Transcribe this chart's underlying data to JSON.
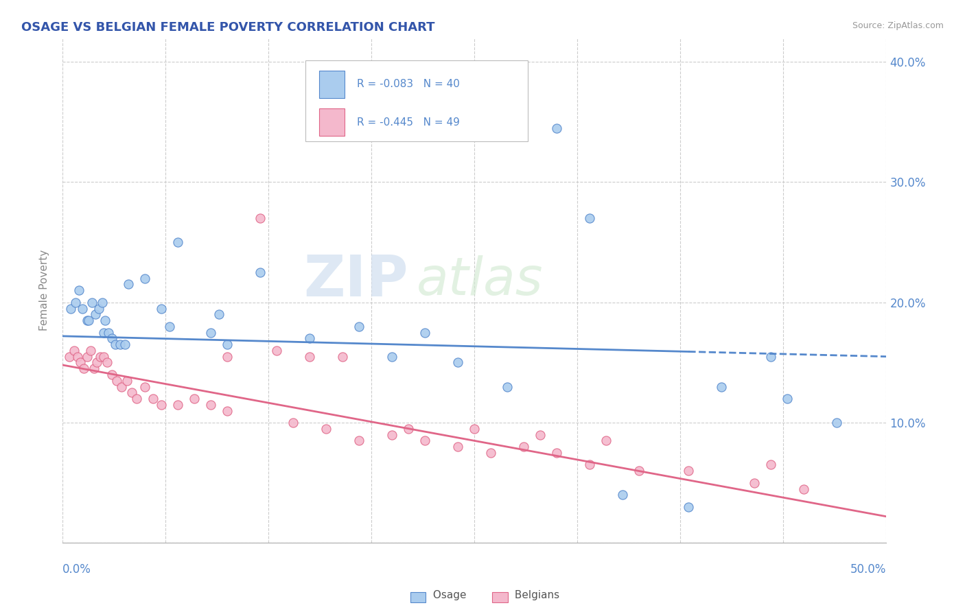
{
  "title": "OSAGE VS BELGIAN FEMALE POVERTY CORRELATION CHART",
  "source_text": "Source: ZipAtlas.com",
  "ylabel": "Female Poverty",
  "xlim": [
    0.0,
    0.5
  ],
  "ylim": [
    0.0,
    0.42
  ],
  "ytick_labels": [
    "",
    "10.0%",
    "20.0%",
    "30.0%",
    "40.0%"
  ],
  "ytick_values": [
    0.0,
    0.1,
    0.2,
    0.3,
    0.4
  ],
  "xtick_values": [
    0.0,
    0.0625,
    0.125,
    0.1875,
    0.25,
    0.3125,
    0.375,
    0.4375,
    0.5
  ],
  "osage_color": "#aaccee",
  "belgian_color": "#f4b8cc",
  "osage_line_color": "#5588cc",
  "belgian_line_color": "#e06688",
  "background_color": "#ffffff",
  "grid_color": "#cccccc",
  "watermark_top": "ZIP",
  "watermark_bot": "atlas",
  "osage_scatter_x": [
    0.005,
    0.008,
    0.01,
    0.012,
    0.015,
    0.016,
    0.018,
    0.02,
    0.022,
    0.024,
    0.025,
    0.026,
    0.028,
    0.03,
    0.032,
    0.035,
    0.038,
    0.04,
    0.05,
    0.06,
    0.065,
    0.07,
    0.09,
    0.095,
    0.1,
    0.12,
    0.15,
    0.18,
    0.2,
    0.22,
    0.24,
    0.27,
    0.3,
    0.32,
    0.34,
    0.38,
    0.4,
    0.43,
    0.44,
    0.47
  ],
  "osage_scatter_y": [
    0.195,
    0.2,
    0.21,
    0.195,
    0.185,
    0.185,
    0.2,
    0.19,
    0.195,
    0.2,
    0.175,
    0.185,
    0.175,
    0.17,
    0.165,
    0.165,
    0.165,
    0.215,
    0.22,
    0.195,
    0.18,
    0.25,
    0.175,
    0.19,
    0.165,
    0.225,
    0.17,
    0.18,
    0.155,
    0.175,
    0.15,
    0.13,
    0.345,
    0.27,
    0.04,
    0.03,
    0.13,
    0.155,
    0.12,
    0.1
  ],
  "belgian_scatter_x": [
    0.004,
    0.007,
    0.009,
    0.011,
    0.013,
    0.015,
    0.017,
    0.019,
    0.021,
    0.023,
    0.025,
    0.027,
    0.03,
    0.033,
    0.036,
    0.039,
    0.042,
    0.045,
    0.05,
    0.055,
    0.06,
    0.07,
    0.08,
    0.09,
    0.1,
    0.12,
    0.14,
    0.16,
    0.18,
    0.2,
    0.22,
    0.24,
    0.26,
    0.28,
    0.3,
    0.32,
    0.35,
    0.38,
    0.42,
    0.45,
    0.1,
    0.13,
    0.15,
    0.17,
    0.21,
    0.25,
    0.29,
    0.33,
    0.43
  ],
  "belgian_scatter_y": [
    0.155,
    0.16,
    0.155,
    0.15,
    0.145,
    0.155,
    0.16,
    0.145,
    0.15,
    0.155,
    0.155,
    0.15,
    0.14,
    0.135,
    0.13,
    0.135,
    0.125,
    0.12,
    0.13,
    0.12,
    0.115,
    0.115,
    0.12,
    0.115,
    0.11,
    0.27,
    0.1,
    0.095,
    0.085,
    0.09,
    0.085,
    0.08,
    0.075,
    0.08,
    0.075,
    0.065,
    0.06,
    0.06,
    0.05,
    0.045,
    0.155,
    0.16,
    0.155,
    0.155,
    0.095,
    0.095,
    0.09,
    0.085,
    0.065
  ],
  "osage_trend_x0": 0.0,
  "osage_trend_y0": 0.172,
  "osage_trend_x1": 0.5,
  "osage_trend_y1": 0.155,
  "belgian_trend_x0": 0.0,
  "belgian_trend_y0": 0.148,
  "belgian_trend_x1": 0.5,
  "belgian_trend_y1": 0.022
}
